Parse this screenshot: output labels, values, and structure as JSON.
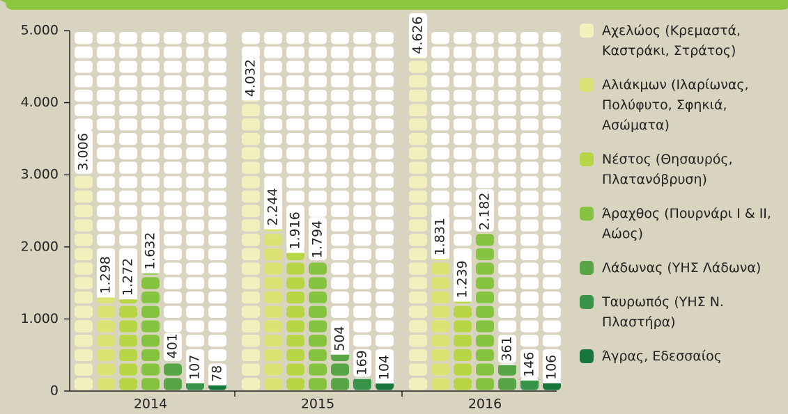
{
  "chart_data": {
    "type": "bar",
    "categories": [
      "2014",
      "2015",
      "2016"
    ],
    "series": [
      {
        "name": "Αχελώος (Κρεμαστά, Καστράκι, Στράτος)",
        "color": "#f2f1bd",
        "values": [
          3006,
          4032,
          4626
        ],
        "value_labels": [
          "3.006",
          "4.032",
          "4.626"
        ]
      },
      {
        "name": "Αλιάκμων (Ιλαρίωνας, Πολύφυτο, Σφηκιά, Ασώματα)",
        "color": "#dbe374",
        "values": [
          1298,
          2244,
          1831
        ],
        "value_labels": [
          "1.298",
          "2.244",
          "1.831"
        ]
      },
      {
        "name": "Νέστος (Θησαυρός, Πλατανόβρυση)",
        "color": "#b8d545",
        "values": [
          1272,
          1916,
          1239
        ],
        "value_labels": [
          "1.272",
          "1.916",
          "1.239"
        ]
      },
      {
        "name": "Άραχθος (Πουρνάρι Ι & ΙΙ, Αώος)",
        "color": "#86c340",
        "values": [
          1632,
          1794,
          2182
        ],
        "value_labels": [
          "1.632",
          "1.794",
          "2.182"
        ]
      },
      {
        "name": "Λάδωνας (ΥΗΣ Λάδωνα)",
        "color": "#58a545",
        "values": [
          401,
          504,
          361
        ]
      },
      {
        "name": "Ταυρωπός (ΥΗΣ Ν. Πλαστήρα)",
        "color": "#379448",
        "values": [
          107,
          169,
          146
        ]
      },
      {
        "name": "Άγρας, Εδεσσαίος",
        "color": "#16763c",
        "values": [
          78,
          104,
          106
        ]
      }
    ],
    "ylim": [
      0,
      5000
    ],
    "yticks": [
      0,
      {
        "value": 1000,
        "label": "1.000"
      },
      {
        "value": 2000,
        "label": "2.000"
      },
      {
        "value": 3000,
        "label": "3.000"
      },
      {
        "value": 4000,
        "label": "4.000"
      },
      {
        "value": 5000,
        "label": "5.000"
      }
    ]
  }
}
